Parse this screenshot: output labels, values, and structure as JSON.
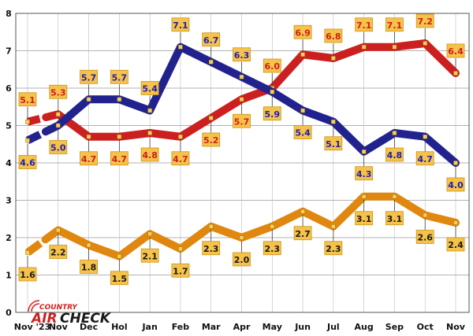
{
  "chart_data": {
    "type": "line",
    "categories": [
      "Nov '23",
      "Nov",
      "Dec",
      "Hol",
      "Jan",
      "Feb",
      "Mar",
      "Apr",
      "May",
      "Jun",
      "Jul",
      "Aug",
      "Sep",
      "Oct",
      "Nov"
    ],
    "ylim": [
      0,
      8
    ],
    "yticks": [
      "0",
      "1",
      "2",
      "3",
      "4",
      "5",
      "6",
      "7",
      "8"
    ],
    "grid": true,
    "break_after_index": 0,
    "series": [
      {
        "color": "#cc1f1f",
        "label_color": "#cc1f1f",
        "values": [
          5.1,
          5.3,
          4.7,
          4.7,
          4.8,
          4.7,
          5.2,
          5.7,
          6.0,
          6.9,
          6.8,
          7.1,
          7.1,
          7.2,
          6.4
        ],
        "labels": [
          "5.1",
          "5.3",
          "4.7",
          "4.7",
          "4.8",
          "4.7",
          "5.2",
          "5.7",
          "6.0",
          "6.9",
          "6.8",
          "7.1",
          "7.1",
          "7.2",
          "6.4"
        ],
        "label_pos": [
          "up",
          "up",
          "down",
          "down",
          "down",
          "down",
          "down",
          "down",
          "up",
          "up",
          "up",
          "up",
          "up",
          "up",
          "up"
        ]
      },
      {
        "color": "#22228f",
        "label_color": "#1f1fb0",
        "values": [
          4.6,
          5.0,
          5.7,
          5.7,
          5.4,
          7.1,
          6.7,
          6.3,
          5.9,
          5.4,
          5.1,
          4.3,
          4.8,
          4.7,
          4.0
        ],
        "labels": [
          "4.6",
          "5.0",
          "5.7",
          "5.7",
          "5.4",
          "7.1",
          "6.7",
          "6.3",
          "5.9",
          "5.4",
          "5.1",
          "4.3",
          "4.8",
          "4.7",
          "4.0"
        ],
        "label_pos": [
          "down",
          "down",
          "up",
          "up",
          "up",
          "up",
          "up",
          "up",
          "down",
          "down",
          "down",
          "down",
          "down",
          "down",
          "down"
        ]
      },
      {
        "color": "#e0870f",
        "label_color": "#1a1a1a",
        "values": [
          1.6,
          2.2,
          1.8,
          1.5,
          2.1,
          1.7,
          2.3,
          2.0,
          2.3,
          2.7,
          2.3,
          3.1,
          3.1,
          2.6,
          2.4
        ],
        "labels": [
          "1.6",
          "2.2",
          "1.8",
          "1.5",
          "2.1",
          "1.7",
          "2.3",
          "2.0",
          "2.3",
          "2.7",
          "2.3",
          "3.1",
          "3.1",
          "2.6",
          "2.4"
        ],
        "label_pos": [
          "down",
          "down",
          "down",
          "down",
          "down",
          "down",
          "down",
          "down",
          "down",
          "down",
          "down",
          "down",
          "down",
          "down",
          "down"
        ]
      }
    ]
  },
  "logo": {
    "line1": "COUNTRY",
    "line2": "AIR",
    "line3": "CHECK"
  }
}
